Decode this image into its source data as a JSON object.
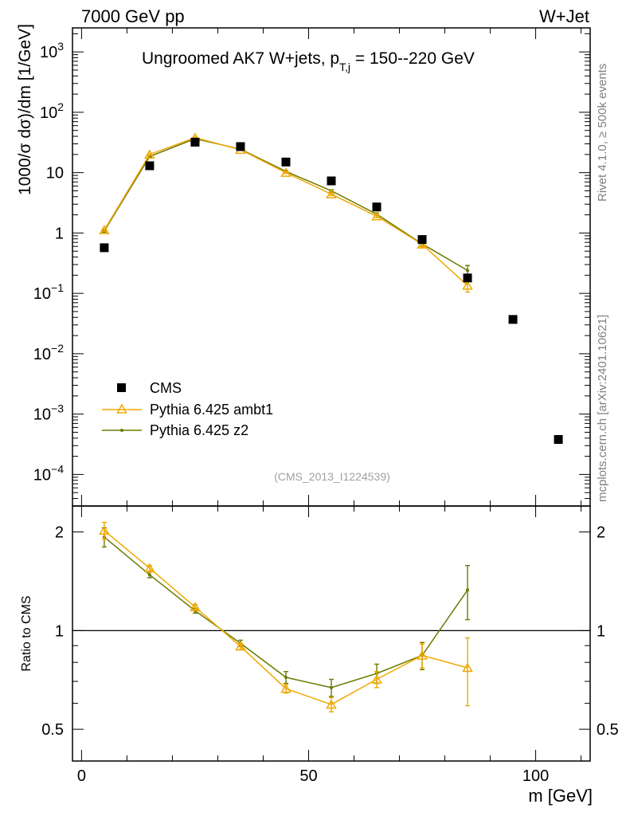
{
  "header": {
    "left": "7000 GeV pp",
    "right": "W+Jet"
  },
  "side_labels": {
    "rivet": "Rivet 4.1.0, ≥ 500k events",
    "mcplots": "mcplots.cern.ch [arXiv:2401.10621]"
  },
  "chart_data": [
    {
      "type": "scatter",
      "panel": "main",
      "title_main": "Ungroomed AK7 W+jets, p",
      "title_sub": "T,j",
      "title_tail": " = 150--220 GeV",
      "ylabel": "1000/σ  dσ)/dm [1/GeV]",
      "xlabel": "m [GeV]",
      "yscale": "log",
      "ylim": [
        3e-05,
        2500
      ],
      "xlim": [
        -2,
        112
      ],
      "y_ticks": [
        {
          "v": 0.0001,
          "base": "10",
          "exp": "−4"
        },
        {
          "v": 0.001,
          "base": "10",
          "exp": "−3"
        },
        {
          "v": 0.01,
          "base": "10",
          "exp": "−2"
        },
        {
          "v": 0.1,
          "base": "10",
          "exp": "−1"
        },
        {
          "v": 1,
          "base": "1",
          "exp": ""
        },
        {
          "v": 10,
          "base": "10",
          "exp": ""
        },
        {
          "v": 100,
          "base": "10",
          "exp": "2"
        },
        {
          "v": 1000,
          "base": "10",
          "exp": "3"
        }
      ],
      "x_ticks": [
        {
          "v": 0,
          "label": "0"
        },
        {
          "v": 50,
          "label": "50"
        },
        {
          "v": 100,
          "label": "100"
        }
      ],
      "series": [
        {
          "name": "CMS",
          "color": "#000000",
          "marker": "square",
          "x": [
            5,
            15,
            25,
            35,
            45,
            55,
            65,
            75,
            85,
            95,
            105
          ],
          "y": [
            0.57,
            13.0,
            32.0,
            27.0,
            15.0,
            7.3,
            2.7,
            0.78,
            0.18,
            0.037,
            0.00038
          ]
        },
        {
          "name": "Pythia 6.425 ambt1",
          "color": "#f0a800",
          "marker": "triangle",
          "x": [
            5,
            15,
            25,
            35,
            45,
            55,
            65,
            75,
            85
          ],
          "y": [
            1.12,
            20.0,
            38.0,
            24.0,
            10.0,
            4.4,
            1.9,
            0.65,
            0.135
          ],
          "err": [
            0.05,
            0.6,
            1.0,
            0.6,
            0.3,
            0.2,
            0.1,
            0.06,
            0.03
          ]
        },
        {
          "name": "Pythia 6.425 z2",
          "color": "#6b7a00",
          "marker": "dot",
          "x": [
            5,
            15,
            25,
            35,
            45,
            55,
            65,
            75,
            85
          ],
          "y": [
            1.08,
            18.5,
            36.5,
            24.5,
            10.5,
            5.0,
            2.05,
            0.66,
            0.24
          ],
          "err": [
            0.05,
            0.6,
            1.0,
            0.6,
            0.3,
            0.2,
            0.1,
            0.06,
            0.05
          ]
        }
      ],
      "legend": [
        "CMS",
        "Pythia 6.425 ambt1",
        "Pythia 6.425 z2"
      ],
      "watermark": "(CMS_2013_I1224539)"
    },
    {
      "type": "line",
      "panel": "ratio",
      "ylabel": "Ratio to CMS",
      "yscale": "log",
      "ylim": [
        0.4,
        2.4
      ],
      "y_ticks": [
        {
          "v": 0.5,
          "label": "0.5"
        },
        {
          "v": 1,
          "label": "1"
        },
        {
          "v": 2,
          "label": "2"
        }
      ],
      "reference": 1,
      "series": [
        {
          "name": "Pythia 6.425 ambt1",
          "color": "#f0a800",
          "marker": "triangle",
          "x": [
            5,
            15,
            25,
            35,
            45,
            55,
            65,
            75,
            85
          ],
          "y": [
            2.02,
            1.55,
            1.18,
            0.895,
            0.665,
            0.595,
            0.71,
            0.84,
            0.77
          ],
          "err": [
            0.12,
            0.03,
            0.02,
            0.02,
            0.02,
            0.03,
            0.04,
            0.07,
            0.18
          ]
        },
        {
          "name": "Pythia 6.425 z2",
          "color": "#6b7a00",
          "marker": "dot",
          "x": [
            5,
            15,
            25,
            35,
            45,
            55,
            65,
            75,
            85
          ],
          "y": [
            1.93,
            1.48,
            1.15,
            0.915,
            0.72,
            0.67,
            0.74,
            0.84,
            1.33
          ],
          "err": [
            0.13,
            0.03,
            0.02,
            0.02,
            0.03,
            0.04,
            0.05,
            0.08,
            0.25
          ]
        }
      ]
    }
  ]
}
